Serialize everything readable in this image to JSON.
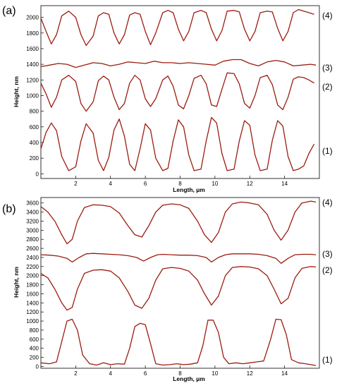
{
  "figure": {
    "panel_labels": [
      "(a)",
      "(b)"
    ]
  },
  "colors": {
    "curve": "#9b1c10",
    "axis": "#000000",
    "background": "#ffffff"
  },
  "chart_data": [
    {
      "type": "line",
      "panel": "(a)",
      "xlabel": "Length, µm",
      "ylabel": "Height, nm",
      "xlim": [
        0,
        16
      ],
      "ylim": [
        -60,
        2150
      ],
      "xticks": [
        2,
        4,
        6,
        8,
        10,
        12,
        14
      ],
      "yticks": [
        0,
        200,
        400,
        600,
        800,
        1000,
        1200,
        1400,
        1600,
        1800,
        2000
      ],
      "grid": false,
      "series": [
        {
          "name": "(1)",
          "x": [
            0.0,
            0.3,
            0.6,
            0.9,
            1.2,
            1.6,
            2.0,
            2.3,
            2.6,
            3.0,
            3.3,
            3.6,
            3.9,
            4.2,
            4.5,
            4.8,
            5.1,
            5.4,
            5.7,
            6.0,
            6.3,
            6.6,
            7.0,
            7.3,
            7.6,
            7.9,
            8.2,
            8.5,
            8.8,
            9.2,
            9.5,
            9.8,
            10.1,
            10.4,
            10.7,
            11.1,
            11.4,
            11.7,
            12.0,
            12.3,
            12.6,
            13.0,
            13.3,
            13.6,
            13.9,
            14.2,
            14.5,
            14.8,
            15.1,
            15.4,
            15.7
          ],
          "y": [
            320,
            530,
            650,
            550,
            220,
            40,
            90,
            420,
            640,
            520,
            170,
            40,
            210,
            560,
            700,
            480,
            120,
            40,
            320,
            640,
            560,
            200,
            40,
            70,
            420,
            690,
            600,
            240,
            40,
            60,
            420,
            720,
            650,
            260,
            40,
            60,
            420,
            680,
            620,
            240,
            40,
            60,
            430,
            680,
            610,
            220,
            40,
            60,
            100,
            260,
            380
          ]
        },
        {
          "name": "(2)",
          "x": [
            0.0,
            0.3,
            0.6,
            0.9,
            1.2,
            1.6,
            2.0,
            2.3,
            2.6,
            3.0,
            3.3,
            3.6,
            3.9,
            4.2,
            4.5,
            4.8,
            5.1,
            5.4,
            5.7,
            6.0,
            6.3,
            6.6,
            7.0,
            7.3,
            7.6,
            7.9,
            8.2,
            8.5,
            8.8,
            9.2,
            9.5,
            9.8,
            10.1,
            10.4,
            10.7,
            11.1,
            11.4,
            11.7,
            12.0,
            12.3,
            12.6,
            13.0,
            13.3,
            13.6,
            13.9,
            14.2,
            14.5,
            14.8,
            15.1,
            15.4,
            15.7
          ],
          "y": [
            1160,
            1020,
            850,
            980,
            1200,
            1260,
            1180,
            900,
            800,
            920,
            1190,
            1250,
            1200,
            980,
            820,
            900,
            1160,
            1260,
            1200,
            960,
            860,
            960,
            1200,
            1250,
            1120,
            880,
            830,
            1000,
            1220,
            1260,
            1150,
            880,
            860,
            1080,
            1290,
            1280,
            1150,
            900,
            840,
            1000,
            1230,
            1260,
            1140,
            880,
            820,
            980,
            1210,
            1240,
            1230,
            1200,
            1160
          ]
        },
        {
          "name": "(3)",
          "x": [
            0.0,
            0.5,
            1.0,
            1.5,
            2.0,
            2.5,
            3.0,
            3.5,
            4.0,
            4.5,
            5.0,
            5.5,
            6.0,
            6.5,
            7.0,
            7.5,
            8.0,
            8.5,
            9.0,
            9.5,
            10.0,
            10.5,
            11.0,
            11.5,
            12.0,
            12.5,
            13.0,
            13.5,
            14.0,
            14.5,
            15.0,
            15.5,
            15.8
          ],
          "y": [
            1370,
            1390,
            1410,
            1400,
            1360,
            1390,
            1420,
            1410,
            1380,
            1400,
            1430,
            1420,
            1410,
            1440,
            1420,
            1420,
            1410,
            1420,
            1410,
            1400,
            1390,
            1440,
            1460,
            1460,
            1410,
            1380,
            1430,
            1450,
            1430,
            1380,
            1390,
            1400,
            1390
          ]
        },
        {
          "name": "(4)",
          "x": [
            0.0,
            0.3,
            0.6,
            0.9,
            1.2,
            1.6,
            2.0,
            2.3,
            2.6,
            3.0,
            3.3,
            3.6,
            3.9,
            4.2,
            4.5,
            4.8,
            5.1,
            5.4,
            5.7,
            6.0,
            6.3,
            6.6,
            7.0,
            7.3,
            7.6,
            7.9,
            8.2,
            8.5,
            8.8,
            9.2,
            9.5,
            9.8,
            10.1,
            10.4,
            10.7,
            11.1,
            11.4,
            11.7,
            12.0,
            12.3,
            12.6,
            13.0,
            13.3,
            13.6,
            13.9,
            14.2,
            14.5,
            14.8,
            15.1,
            15.4,
            15.7
          ],
          "y": [
            1990,
            1820,
            1660,
            1780,
            2020,
            2080,
            2000,
            1780,
            1640,
            1760,
            2020,
            2060,
            2040,
            1800,
            1660,
            1780,
            2030,
            2060,
            2040,
            1820,
            1650,
            1800,
            2060,
            2090,
            2060,
            1850,
            1700,
            1820,
            2060,
            2090,
            2060,
            1850,
            1700,
            1830,
            2080,
            2090,
            2070,
            1850,
            1700,
            1820,
            2060,
            2080,
            2070,
            1860,
            1700,
            1820,
            2060,
            2100,
            2080,
            2060,
            2040
          ]
        }
      ],
      "curve_labels": [
        "(1)",
        "(2)",
        "(3)",
        "(4)"
      ]
    },
    {
      "type": "line",
      "panel": "(b)",
      "xlabel": "Length, µm",
      "ylabel": "Height, nm",
      "xlim": [
        0,
        16
      ],
      "ylim": [
        -40,
        3720
      ],
      "xticks": [
        2,
        4,
        6,
        8,
        10,
        12,
        14
      ],
      "yticks": [
        0,
        200,
        400,
        600,
        800,
        1000,
        1200,
        1400,
        1600,
        1800,
        2000,
        2200,
        2400,
        2600,
        2800,
        3000,
        3200,
        3400,
        3600
      ],
      "grid": false,
      "series": [
        {
          "name": "(1)",
          "x": [
            0.0,
            0.5,
            0.9,
            1.2,
            1.5,
            1.8,
            2.1,
            2.4,
            2.8,
            3.2,
            3.6,
            4.0,
            4.4,
            4.8,
            5.1,
            5.4,
            5.7,
            6.0,
            6.3,
            6.6,
            7.0,
            7.4,
            7.8,
            8.2,
            8.6,
            9.0,
            9.3,
            9.6,
            9.9,
            10.2,
            10.5,
            10.8,
            11.2,
            11.6,
            12.0,
            12.4,
            12.8,
            13.2,
            13.5,
            13.8,
            14.1,
            14.4,
            14.8,
            15.2,
            15.5,
            15.8
          ],
          "y": [
            80,
            60,
            100,
            550,
            1000,
            1040,
            800,
            250,
            60,
            30,
            80,
            40,
            60,
            50,
            400,
            880,
            950,
            920,
            500,
            60,
            30,
            40,
            60,
            40,
            50,
            80,
            450,
            1020,
            1020,
            750,
            200,
            60,
            80,
            60,
            80,
            100,
            120,
            600,
            1040,
            1030,
            700,
            150,
            80,
            60,
            40,
            20
          ]
        },
        {
          "name": "(2)",
          "x": [
            0.0,
            0.4,
            0.8,
            1.2,
            1.5,
            1.8,
            2.1,
            2.5,
            3.0,
            3.5,
            4.0,
            4.5,
            5.0,
            5.4,
            5.8,
            6.2,
            6.6,
            7.0,
            7.5,
            8.0,
            8.5,
            9.0,
            9.4,
            9.8,
            10.2,
            10.6,
            11.0,
            11.5,
            12.0,
            12.5,
            13.0,
            13.4,
            13.8,
            14.2,
            14.6,
            15.0,
            15.5,
            15.8
          ],
          "y": [
            2050,
            1950,
            1700,
            1400,
            1240,
            1300,
            1700,
            2050,
            2120,
            2130,
            2100,
            1950,
            1650,
            1350,
            1280,
            1500,
            1900,
            2150,
            2180,
            2160,
            2100,
            1900,
            1600,
            1350,
            1550,
            2000,
            2180,
            2200,
            2190,
            2150,
            2000,
            1700,
            1380,
            1500,
            1950,
            2160,
            2200,
            2190
          ]
        },
        {
          "name": "(3)",
          "x": [
            0.0,
            0.5,
            1.0,
            1.5,
            1.8,
            2.2,
            2.6,
            3.0,
            3.5,
            4.0,
            4.5,
            5.0,
            5.5,
            5.9,
            6.3,
            6.7,
            7.0,
            7.5,
            8.0,
            8.5,
            9.0,
            9.5,
            9.8,
            10.2,
            10.6,
            11.0,
            11.5,
            12.0,
            12.5,
            13.0,
            13.5,
            13.8,
            14.2,
            14.6,
            15.0,
            15.5,
            15.8
          ],
          "y": [
            2460,
            2450,
            2430,
            2380,
            2300,
            2400,
            2480,
            2490,
            2480,
            2470,
            2460,
            2440,
            2400,
            2320,
            2400,
            2460,
            2470,
            2460,
            2450,
            2450,
            2440,
            2400,
            2300,
            2400,
            2460,
            2480,
            2480,
            2480,
            2470,
            2440,
            2380,
            2270,
            2380,
            2460,
            2470,
            2470,
            2460
          ]
        },
        {
          "name": "(4)",
          "x": [
            0.0,
            0.4,
            0.8,
            1.2,
            1.5,
            1.8,
            2.1,
            2.5,
            3.0,
            3.5,
            4.0,
            4.5,
            5.0,
            5.4,
            5.8,
            6.2,
            6.6,
            7.0,
            7.5,
            8.0,
            8.5,
            9.0,
            9.4,
            9.8,
            10.2,
            10.6,
            11.0,
            11.5,
            12.0,
            12.5,
            13.0,
            13.4,
            13.8,
            14.2,
            14.6,
            15.0,
            15.5,
            15.8
          ],
          "y": [
            3520,
            3400,
            3200,
            2900,
            2700,
            2800,
            3200,
            3500,
            3560,
            3550,
            3520,
            3380,
            3100,
            2900,
            2850,
            3100,
            3400,
            3550,
            3580,
            3560,
            3480,
            3200,
            2900,
            2730,
            2950,
            3400,
            3580,
            3620,
            3600,
            3560,
            3350,
            3000,
            2780,
            3000,
            3400,
            3600,
            3640,
            3620
          ]
        }
      ],
      "curve_labels": [
        "(1)",
        "(2)",
        "(3)",
        "(4)"
      ]
    }
  ]
}
